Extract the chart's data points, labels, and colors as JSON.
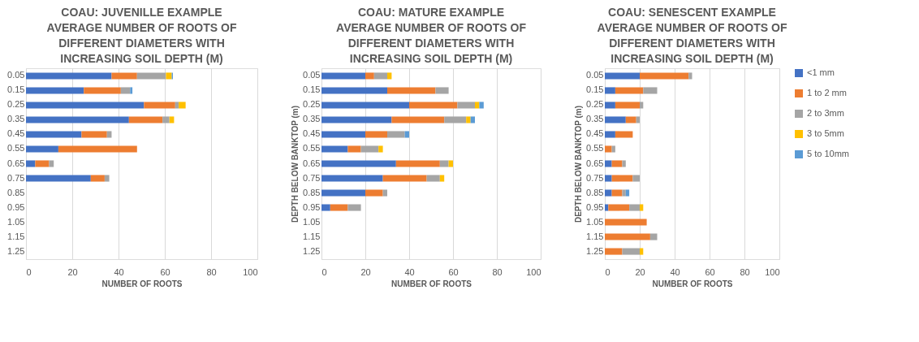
{
  "chart_data": [
    {
      "type": "bar",
      "orientation": "horizontal",
      "stacked": true,
      "title": "COAU: JUVENILLE EXAMPLE\nAVERAGE NUMBER OF ROOTS OF\nDIFFERENT DIAMETERS WITH\nINCREASING SOIL DEPTH (M)",
      "xlabel": "NUMBER OF ROOTS",
      "categories": [
        "0.05",
        "0.15",
        "0.25",
        "0.35",
        "0.45",
        "0.55",
        "0.65",
        "0.75",
        "0.85",
        "0.95",
        "1.05",
        "1.15",
        "1.25"
      ],
      "xlim": [
        0,
        100
      ],
      "xticks": [
        0,
        20,
        40,
        60,
        80,
        100
      ],
      "grid": "x",
      "legend": false,
      "series": [
        {
          "color": "#4472c4",
          "values": [
            37,
            25,
            51,
            44.5,
            24,
            14,
            4,
            28,
            null,
            null,
            null,
            null,
            null
          ]
        },
        {
          "color": "#ed7d31",
          "values": [
            11,
            16,
            13.5,
            14.5,
            11,
            34,
            6,
            6,
            null,
            null,
            null,
            null,
            null
          ]
        },
        {
          "color": "#a5a5a5",
          "values": [
            12.5,
            4,
            1.5,
            3,
            2,
            null,
            2,
            2,
            null,
            null,
            null,
            null,
            null
          ]
        },
        {
          "color": "#ffc000",
          "values": [
            2.5,
            null,
            3,
            2,
            null,
            null,
            null,
            null,
            null,
            null,
            null,
            null,
            null
          ]
        },
        {
          "color": "#5b9bd5",
          "values": [
            0.5,
            1,
            null,
            null,
            null,
            null,
            null,
            null,
            null,
            null,
            null,
            null,
            null
          ]
        }
      ]
    },
    {
      "type": "bar",
      "orientation": "horizontal",
      "stacked": true,
      "title": "COAU: MATURE EXAMPLE\nAVERAGE NUMBER OF ROOTS OF\nDIFFERENT DIAMETERS WITH\nINCREASING SOIL DEPTH (M)",
      "xlabel": "NUMBER OF ROOTS",
      "ylabel": "DEPTH BELOW BANKTOP (m)",
      "categories": [
        "0.05",
        "0.15",
        "0.25",
        "0.35",
        "0.45",
        "0.55",
        "0.65",
        "0.75",
        "0.85",
        "0.95",
        "1.05",
        "1.15",
        "1.25"
      ],
      "xlim": [
        0,
        100
      ],
      "xticks": [
        0,
        20,
        40,
        60,
        80,
        100
      ],
      "grid": "x",
      "legend": false,
      "series": [
        {
          "color": "#4472c4",
          "values": [
            20,
            30,
            40,
            32,
            20,
            12,
            34,
            28,
            20,
            4,
            null,
            null,
            null
          ]
        },
        {
          "color": "#ed7d31",
          "values": [
            4,
            22,
            22,
            24,
            10,
            6,
            20,
            20,
            8,
            8,
            null,
            null,
            null
          ]
        },
        {
          "color": "#a5a5a5",
          "values": [
            6,
            6,
            8,
            10,
            8,
            8,
            4,
            6,
            2,
            6,
            null,
            null,
            null
          ]
        },
        {
          "color": "#ffc000",
          "values": [
            2,
            null,
            2,
            2,
            null,
            2,
            2,
            2,
            null,
            null,
            null,
            null,
            null
          ]
        },
        {
          "color": "#5b9bd5",
          "values": [
            null,
            null,
            2,
            2,
            2,
            null,
            null,
            null,
            null,
            null,
            null,
            null,
            null
          ]
        }
      ]
    },
    {
      "type": "bar",
      "orientation": "horizontal",
      "stacked": true,
      "title": "COAU: SENESCENT EXAMPLE\nAVERAGE NUMBER OF ROOTS OF\nDIFFERENT DIAMETERS WITH\nINCREASING SOIL DEPTH (M)",
      "xlabel": "NUMBER OF ROOTS",
      "ylabel": "DEPTH BELOW BANKTOP (m)",
      "categories": [
        "0.05",
        "0.15",
        "0.25",
        "0.35",
        "0.45",
        "0.55",
        "0.65",
        "0.75",
        "0.85",
        "0.95",
        "1.05",
        "1.15",
        "1.25"
      ],
      "xlim": [
        0,
        100
      ],
      "xticks": [
        0,
        20,
        40,
        60,
        80,
        100
      ],
      "grid": "x",
      "legend": "right",
      "series": [
        {
          "name": "<1 mm",
          "color": "#4472c4",
          "values": [
            20,
            6,
            6,
            12,
            6,
            null,
            4,
            4,
            4,
            2,
            null,
            null,
            null
          ]
        },
        {
          "name": "1 to 2 mm",
          "color": "#ed7d31",
          "values": [
            28,
            16,
            14,
            6,
            10,
            4,
            6,
            12,
            6,
            12,
            24,
            26,
            10
          ]
        },
        {
          "name": "2 to 3mm",
          "color": "#a5a5a5",
          "values": [
            2,
            8,
            2,
            2,
            null,
            2,
            2,
            4,
            2,
            6,
            null,
            4,
            10
          ]
        },
        {
          "name": "3 to 5mm",
          "color": "#ffc000",
          "values": [
            null,
            null,
            null,
            null,
            null,
            null,
            null,
            null,
            null,
            2,
            null,
            null,
            2
          ]
        },
        {
          "name": "5 to 10mm",
          "color": "#5b9bd5",
          "values": [
            null,
            null,
            null,
            null,
            null,
            null,
            null,
            null,
            2,
            null,
            null,
            null,
            null
          ]
        }
      ]
    }
  ]
}
